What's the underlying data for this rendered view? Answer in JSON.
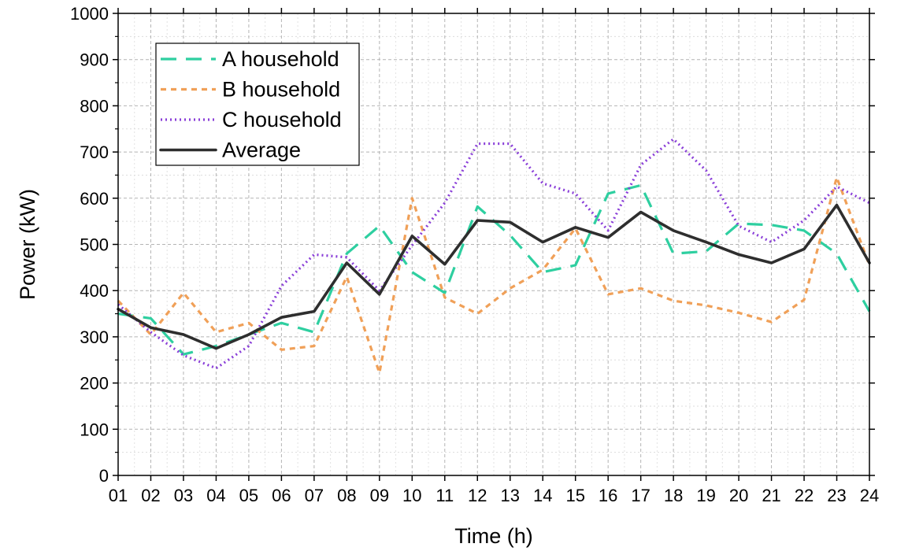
{
  "chart_data": {
    "type": "line",
    "xlabel": "Time (h)",
    "ylabel": "Power (kW)",
    "x": [
      "01",
      "02",
      "03",
      "04",
      "05",
      "06",
      "07",
      "08",
      "09",
      "10",
      "11",
      "12",
      "13",
      "14",
      "15",
      "16",
      "17",
      "18",
      "19",
      "20",
      "21",
      "22",
      "23",
      "24"
    ],
    "ylim": [
      0,
      1000
    ],
    "yticks": [
      0,
      100,
      200,
      300,
      400,
      500,
      600,
      700,
      800,
      900,
      1000
    ],
    "grid": true,
    "legend_position": "top-left",
    "series": [
      {
        "name": "A household",
        "color": "#2ecfa0",
        "dash": "long-dash",
        "values": [
          350,
          340,
          262,
          280,
          305,
          330,
          310,
          480,
          540,
          440,
          395,
          582,
          520,
          440,
          455,
          610,
          628,
          480,
          485,
          545,
          542,
          530,
          480,
          355
        ]
      },
      {
        "name": "B household",
        "color": "#f0a058",
        "dash": "short-dash",
        "values": [
          378,
          305,
          395,
          310,
          330,
          272,
          280,
          430,
          222,
          600,
          385,
          350,
          405,
          445,
          535,
          392,
          405,
          378,
          368,
          352,
          332,
          380,
          645,
          455
        ]
      },
      {
        "name": "C household",
        "color": "#8a3fd8",
        "dash": "dotted",
        "values": [
          370,
          310,
          260,
          232,
          280,
          410,
          478,
          472,
          400,
          498,
          590,
          718,
          718,
          632,
          610,
          530,
          672,
          728,
          660,
          540,
          505,
          552,
          625,
          590
        ]
      },
      {
        "name": "Average",
        "color": "#2e2e2e",
        "dash": "solid",
        "values": [
          360,
          320,
          305,
          275,
          305,
          342,
          355,
          460,
          392,
          518,
          457,
          552,
          548,
          505,
          537,
          515,
          570,
          530,
          505,
          478,
          460,
          490,
          585,
          460
        ]
      }
    ]
  }
}
